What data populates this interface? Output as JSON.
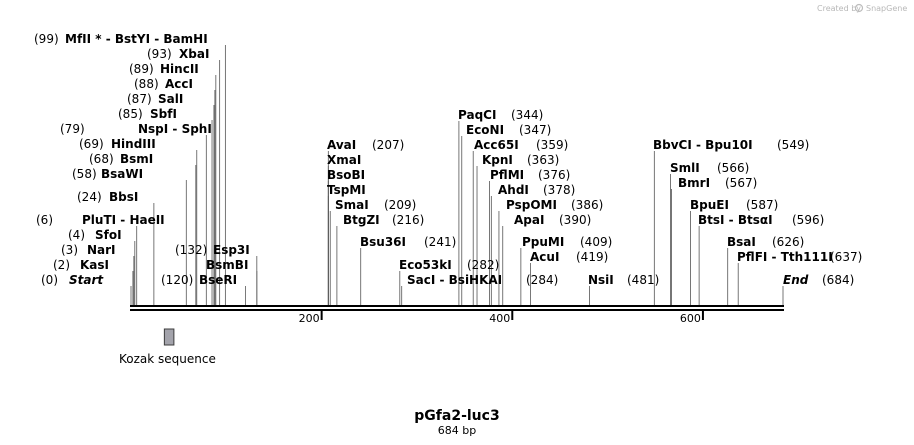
{
  "credit": {
    "prefix": "Created by",
    "brand": "SnapGene"
  },
  "plasmid": {
    "name": "pGfa2-luc3",
    "length_label": "684 bp"
  },
  "sequence_length": 684,
  "axis_ticks": [
    {
      "pos": 200,
      "label": "200"
    },
    {
      "pos": 400,
      "label": "400"
    },
    {
      "pos": 600,
      "label": "600"
    }
  ],
  "feature": {
    "name": "Kozak sequence",
    "start": 35,
    "end": 45,
    "color": "#a3a3ab"
  },
  "sites": [
    {
      "pos_text": "(0)",
      "name": "Start",
      "italic": true,
      "pos": 0
    },
    {
      "pos_text": "(2)",
      "name": "KasI",
      "pos": 2
    },
    {
      "pos_text": "(3)",
      "name": "NarI",
      "pos": 3
    },
    {
      "pos_text": "(4)",
      "name": "SfoI",
      "pos": 4
    },
    {
      "pos_text": "(6)",
      "name": "PluTI  -  HaeII",
      "pos": 6
    },
    {
      "pos_text": "(24)",
      "name": "BbsI",
      "pos": 24
    },
    {
      "pos_text": "(58)",
      "name": "BsaWI",
      "pos": 58
    },
    {
      "pos_text": "(68)",
      "name": "BsmI",
      "pos": 68
    },
    {
      "pos_text": "(69)",
      "name": "HindIII",
      "pos": 69
    },
    {
      "pos_text": "(79)",
      "name": "NspI  -  SphI",
      "pos": 79
    },
    {
      "pos_text": "(85)",
      "name": "SbfI",
      "pos": 85
    },
    {
      "pos_text": "(87)",
      "name": "SalI",
      "pos": 87
    },
    {
      "pos_text": "(88)",
      "name": "AccI",
      "pos": 88
    },
    {
      "pos_text": "(89)",
      "name": "HincII",
      "pos": 89
    },
    {
      "pos_text": "(93)",
      "name": "XbaI",
      "pos": 93
    },
    {
      "pos_text": "(99)",
      "name": "MfII *  -  BstYI   -  BamHI",
      "pos": 99
    },
    {
      "pos_text": "(120)",
      "name": "BseRI",
      "pos": 120
    },
    {
      "pos_text": "",
      "name": "BsmBI",
      "pos": 132
    },
    {
      "pos_text": "(132)",
      "name": "Esp3I",
      "pos": 132
    },
    {
      "pos_text": "(207)",
      "name": "AvaI",
      "pos": 207
    },
    {
      "pos_text": "",
      "name": "XmaI",
      "pos": 207
    },
    {
      "pos_text": "",
      "name": "BsoBI",
      "pos": 207
    },
    {
      "pos_text": "",
      "name": "TspMI",
      "pos": 207
    },
    {
      "pos_text": "(209)",
      "name": "SmaI",
      "pos": 209
    },
    {
      "pos_text": "(216)",
      "name": "BtgZI",
      "pos": 216
    },
    {
      "pos_text": "(241)",
      "name": "Bsu36I",
      "pos": 241
    },
    {
      "pos_text": "(282)",
      "name": "Eco53kI",
      "pos": 282
    },
    {
      "pos_text": "(284)",
      "name": "SacI   -  BsiHKAI",
      "pos": 284
    },
    {
      "pos_text": "(344)",
      "name": "PaqCI",
      "pos": 344
    },
    {
      "pos_text": "(347)",
      "name": "EcoNI",
      "pos": 347
    },
    {
      "pos_text": "(359)",
      "name": "Acc65I",
      "pos": 359
    },
    {
      "pos_text": "(363)",
      "name": "KpnI",
      "pos": 363
    },
    {
      "pos_text": "(376)",
      "name": "PflMI",
      "pos": 376
    },
    {
      "pos_text": "(378)",
      "name": "AhdI",
      "pos": 378
    },
    {
      "pos_text": "(386)",
      "name": "PspOMI",
      "pos": 386
    },
    {
      "pos_text": "(390)",
      "name": "ApaI",
      "pos": 390
    },
    {
      "pos_text": "(409)",
      "name": "PpuMI",
      "pos": 409
    },
    {
      "pos_text": "(419)",
      "name": "AcuI",
      "pos": 419
    },
    {
      "pos_text": "(481)",
      "name": "NsiI",
      "pos": 481
    },
    {
      "pos_text": "(549)",
      "name": "BbvCI   -  Bpu10I",
      "pos": 549
    },
    {
      "pos_text": "(566)",
      "name": "SmlI",
      "pos": 566
    },
    {
      "pos_text": "(567)",
      "name": "BmrI",
      "pos": 567
    },
    {
      "pos_text": "(587)",
      "name": "BpuEI",
      "pos": 587
    },
    {
      "pos_text": "(596)",
      "name": "BtsI  -  BtsαI",
      "pos": 596
    },
    {
      "pos_text": "(626)",
      "name": "BsaI",
      "pos": 626
    },
    {
      "pos_text": "(637)",
      "name": "PflFI  -  Tth111I",
      "pos": 637
    },
    {
      "pos_text": "(684)",
      "name": "End",
      "italic": true,
      "pos": 684
    }
  ]
}
